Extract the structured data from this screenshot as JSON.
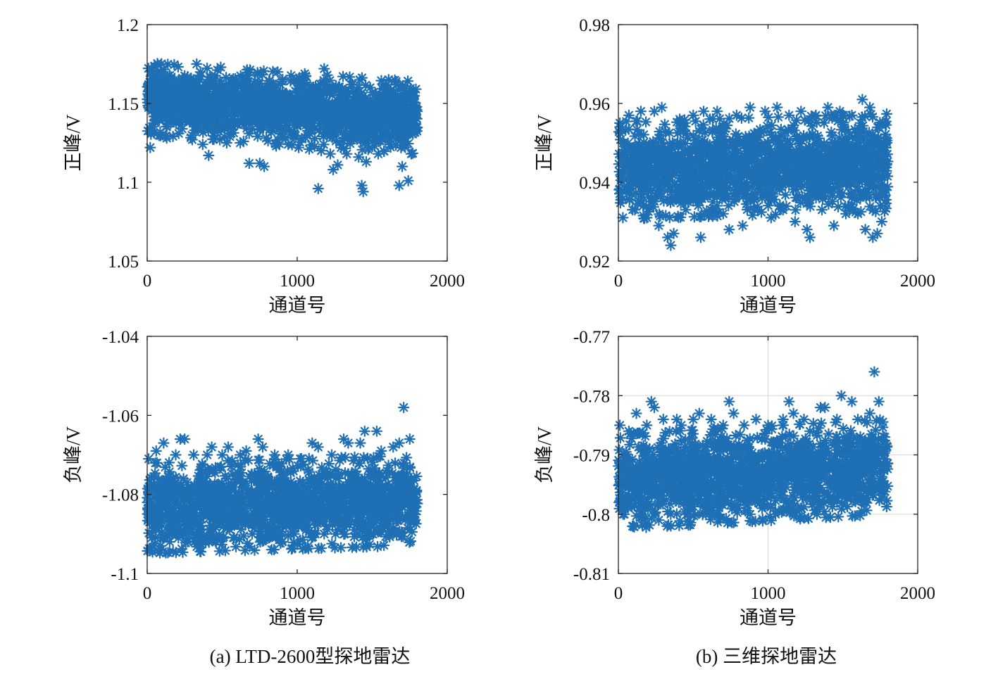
{
  "colors": {
    "marker": "#1f6fb4",
    "axis": "#222222",
    "grid": "#d8d8d8"
  },
  "captions": {
    "left": "(a) LTD-2600型探地雷达",
    "right": "(b) 三维探地雷达"
  },
  "chart_data": [
    {
      "id": "a-positive",
      "type": "scatter",
      "marker": "asterisk",
      "xlabel": "通道号",
      "ylabel": "正峰/V",
      "xlim": [
        0,
        2000
      ],
      "ylim": [
        1.05,
        1.2
      ],
      "xticks": [
        "0",
        "1000",
        "2000"
      ],
      "yticks": [
        "1.05",
        "1.1",
        "1.15",
        "1.2"
      ],
      "grid": false,
      "series": [
        {
          "x_range": [
            0,
            1800
          ],
          "trend": [
            1.153,
            1.141
          ],
          "band_spread": 0.012,
          "points": [
            [
              20,
              1.122
            ],
            [
              40,
              1.168
            ],
            [
              90,
              1.17
            ],
            [
              130,
              1.128
            ],
            [
              160,
              1.166
            ],
            [
              210,
              1.131
            ],
            [
              260,
              1.163
            ],
            [
              300,
              1.127
            ],
            [
              330,
              1.175
            ],
            [
              370,
              1.124
            ],
            [
              410,
              1.117
            ],
            [
              450,
              1.161
            ],
            [
              490,
              1.173
            ],
            [
              530,
              1.125
            ],
            [
              580,
              1.163
            ],
            [
              620,
              1.125
            ],
            [
              660,
              1.166
            ],
            [
              680,
              1.112
            ],
            [
              720,
              1.164
            ],
            [
              750,
              1.112
            ],
            [
              780,
              1.11
            ],
            [
              820,
              1.162
            ],
            [
              860,
              1.123
            ],
            [
              900,
              1.164
            ],
            [
              940,
              1.124
            ],
            [
              980,
              1.164
            ],
            [
              1010,
              1.122
            ],
            [
              1050,
              1.16
            ],
            [
              1080,
              1.121
            ],
            [
              1100,
              1.16
            ],
            [
              1140,
              1.096
            ],
            [
              1160,
              1.12
            ],
            [
              1180,
              1.172
            ],
            [
              1200,
              1.168
            ],
            [
              1220,
              1.118
            ],
            [
              1240,
              1.108
            ],
            [
              1270,
              1.111
            ],
            [
              1300,
              1.159
            ],
            [
              1330,
              1.118
            ],
            [
              1370,
              1.158
            ],
            [
              1410,
              1.116
            ],
            [
              1430,
              1.098
            ],
            [
              1440,
              1.094
            ],
            [
              1460,
              1.113
            ],
            [
              1500,
              1.157
            ],
            [
              1540,
              1.118
            ],
            [
              1580,
              1.157
            ],
            [
              1620,
              1.124
            ],
            [
              1660,
              1.162
            ],
            [
              1680,
              1.098
            ],
            [
              1700,
              1.11
            ],
            [
              1720,
              1.161
            ],
            [
              1740,
              1.101
            ],
            [
              1760,
              1.118
            ],
            [
              1790,
              1.135
            ]
          ]
        }
      ]
    },
    {
      "id": "b-positive",
      "type": "scatter",
      "marker": "asterisk",
      "xlabel": "通道号",
      "ylabel": "正峰/V",
      "xlim": [
        0,
        2000
      ],
      "ylim": [
        0.92,
        0.98
      ],
      "xticks": [
        "0",
        "1000",
        "2000"
      ],
      "yticks": [
        "0.92",
        "0.94",
        "0.96",
        "0.98"
      ],
      "grid": false,
      "series": [
        {
          "x_range": [
            0,
            1800
          ],
          "trend": [
            0.943,
            0.945
          ],
          "band_spread": 0.0065,
          "points": [
            [
              10,
              0.955
            ],
            [
              30,
              0.931
            ],
            [
              70,
              0.957
            ],
            [
              110,
              0.933
            ],
            [
              150,
              0.958
            ],
            [
              190,
              0.931
            ],
            [
              240,
              0.958
            ],
            [
              270,
              0.929
            ],
            [
              290,
              0.959
            ],
            [
              330,
              0.926
            ],
            [
              350,
              0.924
            ],
            [
              370,
              0.927
            ],
            [
              410,
              0.956
            ],
            [
              450,
              0.933
            ],
            [
              500,
              0.957
            ],
            [
              550,
              0.926
            ],
            [
              570,
              0.958
            ],
            [
              620,
              0.933
            ],
            [
              660,
              0.958
            ],
            [
              700,
              0.932
            ],
            [
              740,
              0.928
            ],
            [
              790,
              0.957
            ],
            [
              830,
              0.929
            ],
            [
              880,
              0.959
            ],
            [
              930,
              0.933
            ],
            [
              980,
              0.958
            ],
            [
              1020,
              0.931
            ],
            [
              1060,
              0.959
            ],
            [
              1100,
              0.933
            ],
            [
              1140,
              0.957
            ],
            [
              1180,
              0.93
            ],
            [
              1220,
              0.958
            ],
            [
              1260,
              0.928
            ],
            [
              1280,
              0.926
            ],
            [
              1320,
              0.957
            ],
            [
              1360,
              0.933
            ],
            [
              1400,
              0.959
            ],
            [
              1440,
              0.929
            ],
            [
              1480,
              0.958
            ],
            [
              1520,
              0.932
            ],
            [
              1560,
              0.957
            ],
            [
              1600,
              0.932
            ],
            [
              1630,
              0.961
            ],
            [
              1650,
              0.928
            ],
            [
              1680,
              0.959
            ],
            [
              1700,
              0.926
            ],
            [
              1730,
              0.927
            ],
            [
              1760,
              0.93
            ],
            [
              1780,
              0.955
            ]
          ]
        }
      ]
    },
    {
      "id": "a-negative",
      "type": "scatter",
      "marker": "asterisk",
      "xlabel": "通道号",
      "ylabel": "负峰/V",
      "xlim": [
        0,
        2000
      ],
      "ylim": [
        -1.1,
        -1.04
      ],
      "xticks": [
        "0",
        "1000",
        "2000"
      ],
      "yticks": [
        "-1.1",
        "-1.08",
        "-1.06",
        "-1.04"
      ],
      "grid": false,
      "series": [
        {
          "x_range": [
            0,
            1800
          ],
          "trend": [
            -1.0835,
            -1.0815
          ],
          "band_spread": 0.006,
          "points": [
            [
              10,
              -1.071
            ],
            [
              30,
              -1.091
            ],
            [
              60,
              -1.069
            ],
            [
              90,
              -1.093
            ],
            [
              110,
              -1.067
            ],
            [
              150,
              -1.092
            ],
            [
              190,
              -1.07
            ],
            [
              220,
              -1.066
            ],
            [
              250,
              -1.066
            ],
            [
              270,
              -1.092
            ],
            [
              310,
              -1.07
            ],
            [
              350,
              -1.091
            ],
            [
              400,
              -1.07
            ],
            [
              430,
              -1.068
            ],
            [
              460,
              -1.091
            ],
            [
              500,
              -1.07
            ],
            [
              540,
              -1.068
            ],
            [
              580,
              -1.091
            ],
            [
              620,
              -1.07
            ],
            [
              660,
              -1.069
            ],
            [
              700,
              -1.09
            ],
            [
              740,
              -1.066
            ],
            [
              770,
              -1.068
            ],
            [
              810,
              -1.091
            ],
            [
              850,
              -1.07
            ],
            [
              900,
              -1.092
            ],
            [
              940,
              -1.07
            ],
            [
              980,
              -1.09
            ],
            [
              1020,
              -1.071
            ],
            [
              1060,
              -1.089
            ],
            [
              1100,
              -1.067
            ],
            [
              1140,
              -1.068
            ],
            [
              1180,
              -1.09
            ],
            [
              1230,
              -1.07
            ],
            [
              1270,
              -1.089
            ],
            [
              1310,
              -1.066
            ],
            [
              1340,
              -1.067
            ],
            [
              1380,
              -1.089
            ],
            [
              1420,
              -1.067
            ],
            [
              1450,
              -1.064
            ],
            [
              1490,
              -1.087
            ],
            [
              1530,
              -1.064
            ],
            [
              1560,
              -1.069
            ],
            [
              1600,
              -1.088
            ],
            [
              1640,
              -1.068
            ],
            [
              1680,
              -1.067
            ],
            [
              1710,
              -1.058
            ],
            [
              1750,
              -1.066
            ],
            [
              1780,
              -1.087
            ]
          ]
        }
      ]
    },
    {
      "id": "b-negative",
      "type": "scatter",
      "marker": "asterisk",
      "xlabel": "通道号",
      "ylabel": "负峰/V",
      "xlim": [
        0,
        2000
      ],
      "ylim": [
        -0.81,
        -0.77
      ],
      "xticks": [
        "0",
        "1000",
        "2000"
      ],
      "yticks": [
        "-0.81",
        "-0.8",
        "-0.79",
        "-0.78",
        "-0.77"
      ],
      "grid": true,
      "series": [
        {
          "x_range": [
            0,
            1800
          ],
          "trend": [
            -0.7945,
            -0.792
          ],
          "band_spread": 0.0042,
          "points": [
            [
              10,
              -0.785
            ],
            [
              40,
              -0.8
            ],
            [
              70,
              -0.786
            ],
            [
              100,
              -0.802
            ],
            [
              120,
              -0.783
            ],
            [
              150,
              -0.8
            ],
            [
              190,
              -0.785
            ],
            [
              220,
              -0.781
            ],
            [
              240,
              -0.782
            ],
            [
              270,
              -0.801
            ],
            [
              300,
              -0.784
            ],
            [
              350,
              -0.8
            ],
            [
              390,
              -0.784
            ],
            [
              420,
              -0.785
            ],
            [
              460,
              -0.8
            ],
            [
              500,
              -0.784
            ],
            [
              540,
              -0.783
            ],
            [
              580,
              -0.799
            ],
            [
              620,
              -0.784
            ],
            [
              660,
              -0.8
            ],
            [
              700,
              -0.785
            ],
            [
              740,
              -0.781
            ],
            [
              770,
              -0.783
            ],
            [
              800,
              -0.799
            ],
            [
              840,
              -0.785
            ],
            [
              880,
              -0.8
            ],
            [
              920,
              -0.784
            ],
            [
              960,
              -0.799
            ],
            [
              1000,
              -0.785
            ],
            [
              1050,
              -0.8
            ],
            [
              1100,
              -0.784
            ],
            [
              1140,
              -0.781
            ],
            [
              1170,
              -0.783
            ],
            [
              1200,
              -0.799
            ],
            [
              1240,
              -0.784
            ],
            [
              1280,
              -0.786
            ],
            [
              1310,
              -0.798
            ],
            [
              1350,
              -0.782
            ],
            [
              1380,
              -0.782
            ],
            [
              1420,
              -0.798
            ],
            [
              1460,
              -0.784
            ],
            [
              1490,
              -0.78
            ],
            [
              1520,
              -0.797
            ],
            [
              1560,
              -0.781
            ],
            [
              1600,
              -0.784
            ],
            [
              1640,
              -0.798
            ],
            [
              1680,
              -0.783
            ],
            [
              1710,
              -0.776
            ],
            [
              1740,
              -0.781
            ],
            [
              1780,
              -0.787
            ]
          ]
        }
      ]
    }
  ]
}
